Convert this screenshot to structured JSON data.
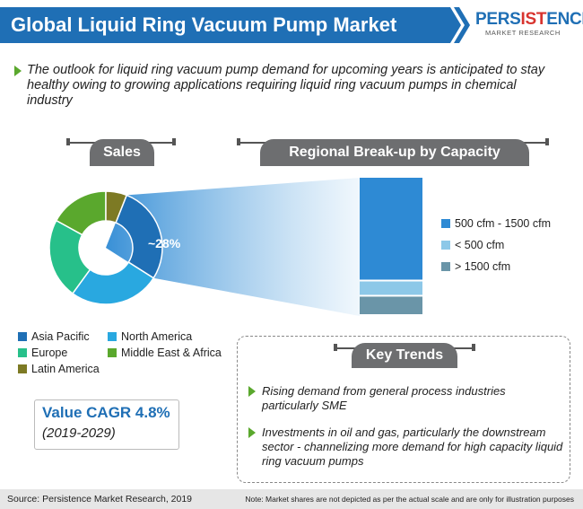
{
  "header": {
    "title": "Global Liquid Ring Vacuum Pump Market",
    "logo_main_a": "PERS",
    "logo_main_b": "IST",
    "logo_main_c": "ENCE",
    "logo_sub": "MARKET RESEARCH"
  },
  "intro": "The outlook for liquid ring vacuum pump demand for upcoming years is anticipated to stay healthy owing to growing applications requiring liquid ring vacuum pumps in chemical industry",
  "sales": {
    "heading": "Sales",
    "highlight_label": "~28%"
  },
  "regional": {
    "heading": "Regional Break-up by Capacity"
  },
  "chart_data": [
    {
      "type": "pie",
      "title": "Sales",
      "categories": [
        "Asia Pacific",
        "North America",
        "Europe",
        "Middle East & Africa",
        "Latin America"
      ],
      "values": [
        28,
        26,
        23,
        17,
        6
      ],
      "annotation": "~28%",
      "colors": [
        "#1f6fb5",
        "#29a8e0",
        "#27c08a",
        "#5aa82d",
        "#7d7a24"
      ]
    },
    {
      "type": "bar",
      "title": "Regional Break-up by Capacity",
      "series": [
        {
          "name": "500 cfm - 1500 cfm",
          "values": [
            75
          ]
        },
        {
          "name": "< 500 cfm",
          "values": [
            11
          ]
        },
        {
          "name": "> 1500 cfm",
          "values": [
            14
          ]
        }
      ],
      "colors": [
        "#2e8ad4",
        "#8dc8e8",
        "#6a95a8"
      ]
    }
  ],
  "cagr": {
    "label": "Value CAGR 4.8%",
    "years": "(2019-2029)"
  },
  "trends": {
    "heading": "Key Trends",
    "items": [
      "Rising demand from general process industries particularly SME",
      "Investments in oil and gas, particularly the downstream sector - channelizing more demand for high capacity liquid ring vacuum pumps"
    ]
  },
  "footer": {
    "source": "Source: Persistence Market Research, 2019",
    "note": "Note: Market shares are not depicted as per the actual scale and are only for illustration purposes"
  }
}
